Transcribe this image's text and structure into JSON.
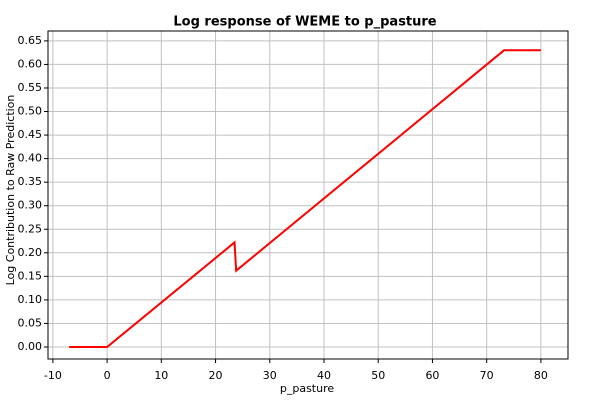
{
  "chart_data": {
    "type": "line",
    "title": "Log response of WEME to p_pasture",
    "x_label": "p_pasture",
    "y_label": "Log Contribution to Raw Prediction",
    "series": [
      {
        "color": "#ff0000",
        "x": [
          -7,
          0,
          23.5,
          23.8,
          73.2,
          80
        ],
        "values": [
          0,
          0,
          0.222,
          0.162,
          0.63,
          0.63
        ]
      }
    ],
    "xlim": [
      -10.9,
      85
    ],
    "ylim": [
      -0.0255,
      0.671
    ],
    "xticks": [
      -10,
      0,
      10,
      20,
      30,
      40,
      50,
      60,
      70,
      80
    ],
    "yticks": [
      {
        "value": 0,
        "label": "0.00"
      },
      {
        "value": 0.05,
        "label": "0.05"
      },
      {
        "value": 0.1,
        "label": "0.10"
      },
      {
        "value": 0.15,
        "label": "0.15"
      },
      {
        "value": 0.2,
        "label": "0.20"
      },
      {
        "value": 0.25,
        "label": "0.25"
      },
      {
        "value": 0.3,
        "label": "0.30"
      },
      {
        "value": 0.35,
        "label": "0.35"
      },
      {
        "value": 0.4,
        "label": "0.40"
      },
      {
        "value": 0.45,
        "label": "0.45"
      },
      {
        "value": 0.5,
        "label": "0.50"
      },
      {
        "value": 0.55,
        "label": "0.55"
      },
      {
        "value": 0.6,
        "label": "0.60"
      },
      {
        "value": 0.65,
        "label": "0.65"
      }
    ],
    "grid": true
  }
}
